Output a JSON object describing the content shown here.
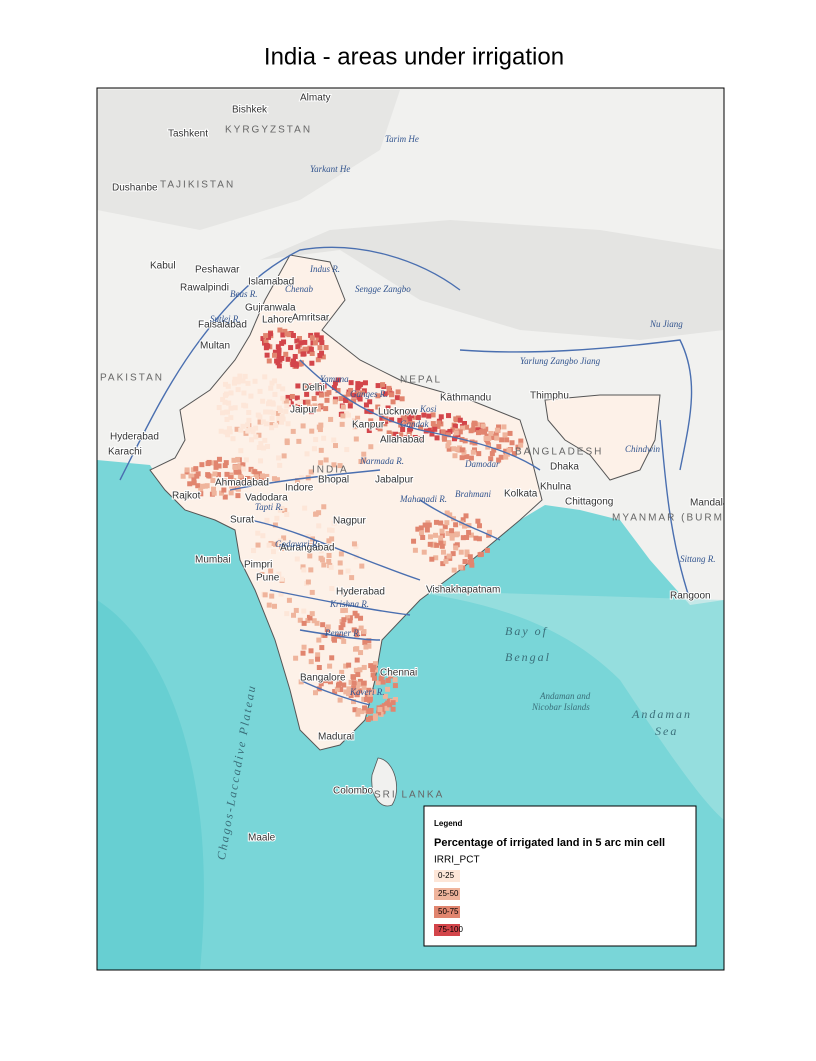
{
  "header": {
    "title": "India - areas under irrigation"
  },
  "legend": {
    "heading": "Legend",
    "title": "Percentage of irrigated land in 5 arc min cell",
    "field": "IRRI_PCT",
    "classes": [
      {
        "label": "0-25",
        "color": "#fde6d8"
      },
      {
        "label": "25-50",
        "color": "#efb49c"
      },
      {
        "label": "50-75",
        "color": "#e1856f"
      },
      {
        "label": "75-100",
        "color": "#d3454a"
      }
    ]
  },
  "places": [
    "Bishkek",
    "Almaty",
    "Tashkent",
    "Dushanbe",
    "Kabul",
    "Peshawar",
    "Islamabad",
    "Rawalpindi",
    "Gujranwala",
    "Lahore",
    "Amritsar",
    "Faisalabad",
    "Multan",
    "Karachi",
    "Hyderabad",
    "Jaipur",
    "Delhi",
    "Kanpur",
    "Lucknow",
    "Allahabad",
    "Kathmandu",
    "Ahmadabad",
    "Rajkot",
    "Vadodara",
    "Surat",
    "Indore",
    "Bhopal",
    "Jabalpur",
    "Nagpur",
    "Mumbai",
    "Aurangabad",
    "Pimpri",
    "Pune",
    "Hyderabad",
    "Vishakhapatnam",
    "Kolkata",
    "Khulna",
    "Dhaka",
    "Chittagong",
    "Mandalay",
    "Rangoon",
    "Chennai",
    "Bangalore",
    "Madurai",
    "Colombo",
    "Maale",
    "Thimphu"
  ],
  "regions": [
    "PAKISTAN",
    "NEPAL",
    "INDIA",
    "BANGLADESH",
    "MYANMAR (BURMA)",
    "SRI LANKA",
    "KYRGYZSTAN",
    "TAJIKISTAN"
  ],
  "rivers": [
    "Indus R.",
    "Chenab",
    "Sutlej R.",
    "Beas R.",
    "Ganges R.",
    "Yamuna",
    "Narmada R.",
    "Tapti R.",
    "Godavari R.",
    "Krishna R.",
    "Penner R.",
    "Kaveri R.",
    "Mahanadi R.",
    "Brahmani",
    "Damodar",
    "Kosi",
    "Gandak",
    "Yarlung Zangbo Jiang",
    "Sengge Zangbo",
    "Tarim He",
    "Yarkant He",
    "Nu Jiang",
    "Chindwin",
    "Sittang R."
  ],
  "seas": [
    "Bay of",
    "Bengal",
    "Andaman",
    "Sea",
    "Andaman and",
    "Nicobar Islands",
    "Chagos-Laccadive Plateau"
  ]
}
